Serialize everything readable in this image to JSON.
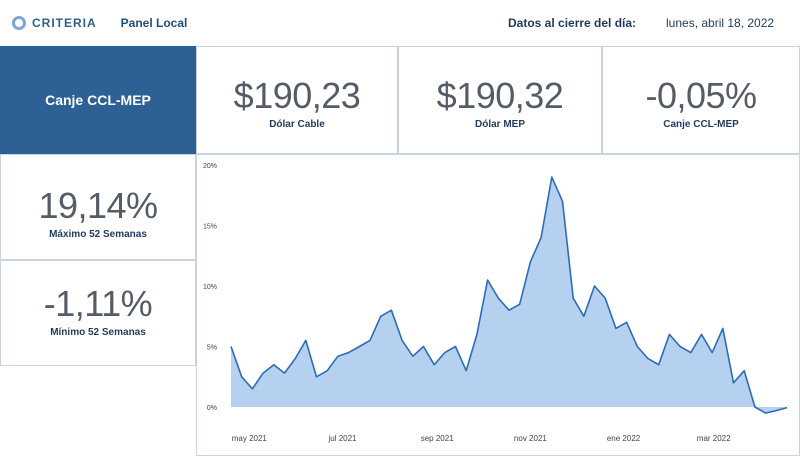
{
  "header": {
    "logo_text": "CRITERIA",
    "panel_title": "Panel Local",
    "close_label": "Datos al cierre del día:",
    "close_date": "lunes, abril 18, 2022"
  },
  "hero": {
    "label": "Canje CCL-MEP"
  },
  "kpis": {
    "dolar_cable": {
      "value": "$190,23",
      "label": "Dólar Cable"
    },
    "dolar_mep": {
      "value": "$190,32",
      "label": "Dólar MEP"
    },
    "canje": {
      "value": "-0,05%",
      "label": "Canje CCL-MEP"
    },
    "maximo": {
      "value": "19,14%",
      "label": "Máximo 52 Semanas"
    },
    "minimo": {
      "value": "-1,11%",
      "label": "Mínimo 52 Semanas"
    }
  },
  "colors": {
    "accent": "#2d6196",
    "series_line": "#2b6cb8",
    "series_fill": "#a9c9ec"
  },
  "chart_data": {
    "type": "area",
    "ylim": [
      0,
      20
    ],
    "y_ticks": [
      "0%",
      "5%",
      "10%",
      "15%",
      "20%"
    ],
    "x_ticks": [
      "may 2021",
      "jul 2021",
      "sep 2021",
      "nov 2021",
      "ene 2022",
      "mar 2022"
    ],
    "grid": false,
    "series": [
      {
        "x": [
          "2021-04-19",
          "2021-04-26",
          "2021-05-03",
          "2021-05-10",
          "2021-05-17",
          "2021-05-24",
          "2021-05-31",
          "2021-06-07",
          "2021-06-14",
          "2021-06-21",
          "2021-06-28",
          "2021-07-05",
          "2021-07-12",
          "2021-07-19",
          "2021-07-26",
          "2021-08-02",
          "2021-08-09",
          "2021-08-16",
          "2021-08-23",
          "2021-08-30",
          "2021-09-06",
          "2021-09-13",
          "2021-09-20",
          "2021-09-27",
          "2021-10-04",
          "2021-10-11",
          "2021-10-18",
          "2021-10-25",
          "2021-11-01",
          "2021-11-08",
          "2021-11-15",
          "2021-11-22",
          "2021-11-29",
          "2021-12-06",
          "2021-12-13",
          "2021-12-20",
          "2021-12-27",
          "2022-01-03",
          "2022-01-10",
          "2022-01-17",
          "2022-01-24",
          "2022-01-31",
          "2022-02-07",
          "2022-02-14",
          "2022-02-21",
          "2022-02-28",
          "2022-03-07",
          "2022-03-14",
          "2022-03-21",
          "2022-03-28",
          "2022-04-04",
          "2022-04-11",
          "2022-04-18"
        ],
        "values": [
          5.0,
          2.5,
          1.5,
          2.8,
          3.5,
          2.8,
          4.0,
          5.5,
          2.5,
          3.0,
          4.2,
          4.5,
          5.0,
          5.5,
          7.5,
          8.0,
          5.5,
          4.2,
          5.0,
          3.5,
          4.5,
          5.0,
          3.0,
          6.0,
          10.5,
          9.0,
          8.0,
          8.5,
          12.0,
          14.0,
          19.0,
          17.0,
          9.0,
          7.5,
          10.0,
          9.0,
          6.5,
          7.0,
          5.0,
          4.0,
          3.5,
          6.0,
          5.0,
          4.5,
          6.0,
          4.5,
          6.5,
          2.0,
          3.0,
          0.0,
          -0.5,
          -0.3,
          -0.05
        ]
      }
    ]
  }
}
